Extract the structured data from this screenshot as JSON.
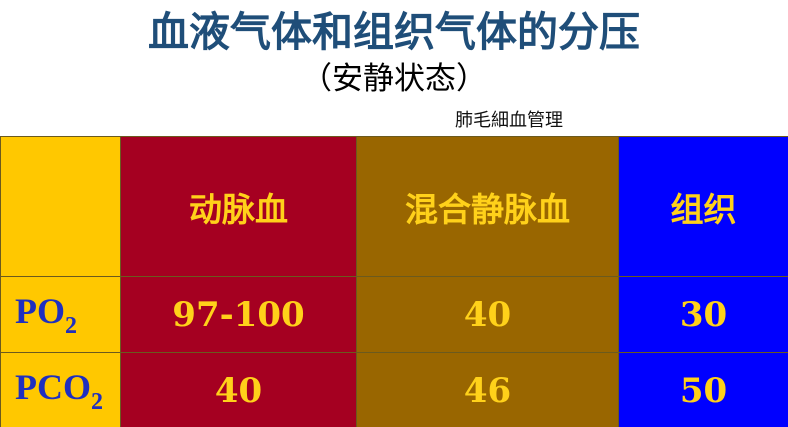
{
  "title": "血液气体和组织气体的分压",
  "subtitle": "（安静状态）",
  "note": "肺毛細血管理",
  "table": {
    "headers": [
      "",
      "动脉血",
      "混合静脉血",
      "组织"
    ],
    "rows": [
      {
        "label_main": "PO",
        "label_sub": "2",
        "values": [
          "97-100",
          "40",
          "30"
        ]
      },
      {
        "label_main": "PCO",
        "label_sub": "2",
        "values": [
          "40",
          "46",
          "50"
        ]
      }
    ]
  },
  "colors": {
    "title": "#1f4e79",
    "label_column": "#ffc800",
    "arterial": "#a50021",
    "venous": "#996600",
    "tissue": "#0000ff",
    "cell_text": "#ffd11a",
    "row_label_text": "#1f2fbf"
  }
}
